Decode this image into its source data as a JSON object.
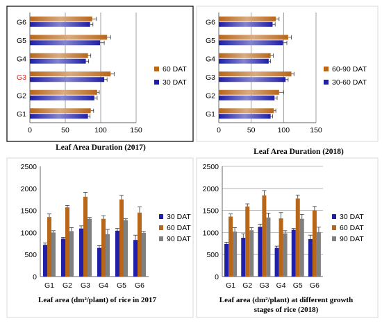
{
  "chart_data": [
    {
      "type": "bar",
      "orientation": "horizontal",
      "categories": [
        "G1",
        "G2",
        "G3",
        "G4",
        "G5",
        "G6"
      ],
      "series": [
        {
          "name": "30 DAT",
          "color": "#1f1fa8",
          "values": [
            82,
            91,
            105,
            79,
            99,
            85
          ],
          "errors": [
            3,
            4,
            4,
            4,
            6,
            4
          ]
        },
        {
          "name": "60 DAT",
          "color": "#b8661a",
          "values": [
            86,
            95,
            114,
            82,
            109,
            88
          ],
          "errors": [
            4,
            3,
            5,
            4,
            5,
            6
          ]
        }
      ],
      "xticks": [
        "0",
        "50",
        "100",
        "150"
      ],
      "xlim": [
        0,
        150
      ],
      "grid": "vertical",
      "legend": "right",
      "caption": "Leaf Area Duration (2017)"
    },
    {
      "type": "bar",
      "orientation": "horizontal",
      "categories": [
        "G1",
        "G2",
        "G3",
        "G4",
        "G5",
        "G6"
      ],
      "series": [
        {
          "name": "30-60 DAT",
          "color": "#1f1fa8",
          "values": [
            80,
            86,
            103,
            77,
            99,
            83
          ],
          "errors": [
            3,
            4,
            4,
            3,
            6,
            4
          ]
        },
        {
          "name": "60-90 DAT",
          "color": "#b8661a",
          "values": [
            85,
            93,
            112,
            80,
            107,
            88
          ],
          "errors": [
            3,
            7,
            4,
            4,
            5,
            5
          ]
        }
      ],
      "xticks": [
        "0",
        "50",
        "100",
        "150"
      ],
      "xlim": [
        0,
        150
      ],
      "grid": "vertical",
      "legend": "right",
      "caption": "Leaf Area Duration (2018)"
    },
    {
      "type": "bar",
      "categories": [
        "G1",
        "G2",
        "G3",
        "G4",
        "G5",
        "G6"
      ],
      "series": [
        {
          "name": "30 DAT",
          "color": "#1f1fa8",
          "values": [
            720,
            860,
            1090,
            650,
            1040,
            830
          ],
          "errors": [
            40,
            30,
            60,
            50,
            50,
            110
          ]
        },
        {
          "name": "60 DAT",
          "color": "#b8661a",
          "values": [
            1350,
            1570,
            1810,
            1310,
            1750,
            1450
          ],
          "errors": [
            70,
            40,
            100,
            70,
            90,
            130
          ]
        },
        {
          "name": "90 DAT",
          "color": "#808080",
          "values": [
            1000,
            1030,
            1310,
            960,
            1280,
            990
          ],
          "errors": [
            40,
            80,
            30,
            110,
            30,
            30
          ]
        }
      ],
      "yticks": [
        "0",
        "500",
        "1000",
        "1500",
        "2000",
        "2500"
      ],
      "ylim": [
        0,
        2500
      ],
      "legend": "right",
      "caption": "Leaf area (dm²/plant) of rice in 2017"
    },
    {
      "type": "bar",
      "categories": [
        "G1",
        "G2",
        "G3",
        "G4",
        "G5",
        "G6"
      ],
      "series": [
        {
          "name": "30 DAT",
          "color": "#1f1fa8",
          "values": [
            740,
            880,
            1130,
            650,
            1060,
            850
          ],
          "errors": [
            40,
            90,
            60,
            40,
            30,
            90
          ]
        },
        {
          "name": "60 DAT",
          "color": "#b8661a",
          "values": [
            1360,
            1590,
            1840,
            1320,
            1770,
            1500
          ],
          "errors": [
            60,
            60,
            110,
            130,
            80,
            90
          ]
        },
        {
          "name": "90 DAT",
          "color": "#808080",
          "values": [
            1020,
            1050,
            1340,
            980,
            1310,
            1010
          ],
          "errors": [
            90,
            60,
            100,
            60,
            100,
            110
          ]
        }
      ],
      "yticks": [
        "0",
        "500",
        "1000",
        "1500",
        "2000",
        "2500"
      ],
      "ylim": [
        0,
        2500
      ],
      "grid": "horizontal",
      "legend": "right",
      "caption_lines": [
        "Leaf area (dm²/plant) at different growth",
        "stages of rice (2018)"
      ]
    }
  ]
}
